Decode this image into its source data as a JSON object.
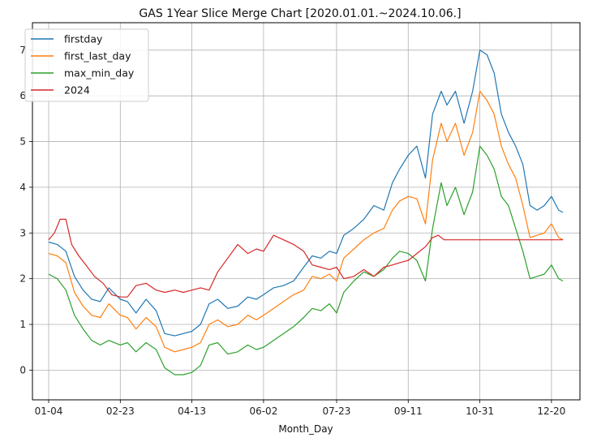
{
  "chart_data": {
    "type": "line",
    "title": "GAS 1Year Slice Merge Chart [2020.01.01.~2024.10.06.]",
    "xlabel": "Month_Day",
    "ylabel": "",
    "x_ticks": [
      "01-04",
      "02-23",
      "04-13",
      "06-02",
      "07-23",
      "09-11",
      "10-31",
      "12-20"
    ],
    "x_range": [
      "01-04",
      "12-28"
    ],
    "y_ticks": [
      0,
      1,
      2,
      3,
      4,
      5,
      6,
      7
    ],
    "ylim": [
      -0.65,
      7.6
    ],
    "grid": true,
    "legend_position": "top-left",
    "series": [
      {
        "name": "firstday",
        "color": "#1f77b4",
        "points": [
          [
            "01-04",
            2.8
          ],
          [
            "01-10",
            2.75
          ],
          [
            "01-16",
            2.6
          ],
          [
            "01-22",
            2.05
          ],
          [
            "01-28",
            1.75
          ],
          [
            "02-03",
            1.55
          ],
          [
            "02-09",
            1.5
          ],
          [
            "02-15",
            1.8
          ],
          [
            "02-23",
            1.55
          ],
          [
            "02-28",
            1.5
          ],
          [
            "03-05",
            1.25
          ],
          [
            "03-12",
            1.55
          ],
          [
            "03-19",
            1.3
          ],
          [
            "03-25",
            0.8
          ],
          [
            "04-01",
            0.75
          ],
          [
            "04-07",
            0.8
          ],
          [
            "04-13",
            0.85
          ],
          [
            "04-19",
            1.0
          ],
          [
            "04-25",
            1.45
          ],
          [
            "05-01",
            1.55
          ],
          [
            "05-08",
            1.35
          ],
          [
            "05-15",
            1.4
          ],
          [
            "05-22",
            1.6
          ],
          [
            "05-28",
            1.55
          ],
          [
            "06-02",
            1.65
          ],
          [
            "06-09",
            1.8
          ],
          [
            "06-16",
            1.85
          ],
          [
            "06-23",
            1.95
          ],
          [
            "06-30",
            2.25
          ],
          [
            "07-06",
            2.5
          ],
          [
            "07-12",
            2.45
          ],
          [
            "07-18",
            2.6
          ],
          [
            "07-23",
            2.55
          ],
          [
            "07-28",
            2.95
          ],
          [
            "08-04",
            3.1
          ],
          [
            "08-11",
            3.3
          ],
          [
            "08-18",
            3.6
          ],
          [
            "08-25",
            3.5
          ],
          [
            "08-31",
            4.1
          ],
          [
            "09-05",
            4.4
          ],
          [
            "09-11",
            4.7
          ],
          [
            "09-17",
            4.9
          ],
          [
            "09-23",
            4.2
          ],
          [
            "09-28",
            5.6
          ],
          [
            "10-04",
            6.1
          ],
          [
            "10-08",
            5.8
          ],
          [
            "10-14",
            6.1
          ],
          [
            "10-20",
            5.4
          ],
          [
            "10-26",
            6.1
          ],
          [
            "10-31",
            7.0
          ],
          [
            "11-05",
            6.9
          ],
          [
            "11-10",
            6.5
          ],
          [
            "11-15",
            5.6
          ],
          [
            "11-20",
            5.2
          ],
          [
            "11-25",
            4.9
          ],
          [
            "11-30",
            4.5
          ],
          [
            "12-05",
            3.6
          ],
          [
            "12-10",
            3.5
          ],
          [
            "12-15",
            3.6
          ],
          [
            "12-20",
            3.8
          ],
          [
            "12-25",
            3.5
          ],
          [
            "12-28",
            3.45
          ]
        ]
      },
      {
        "name": "first_last_day",
        "color": "#ff7f0e",
        "points": [
          [
            "01-04",
            2.55
          ],
          [
            "01-10",
            2.5
          ],
          [
            "01-16",
            2.35
          ],
          [
            "01-22",
            1.7
          ],
          [
            "01-28",
            1.4
          ],
          [
            "02-03",
            1.2
          ],
          [
            "02-09",
            1.15
          ],
          [
            "02-15",
            1.45
          ],
          [
            "02-23",
            1.2
          ],
          [
            "02-28",
            1.15
          ],
          [
            "03-05",
            0.9
          ],
          [
            "03-12",
            1.15
          ],
          [
            "03-19",
            0.95
          ],
          [
            "03-25",
            0.5
          ],
          [
            "04-01",
            0.4
          ],
          [
            "04-07",
            0.45
          ],
          [
            "04-13",
            0.5
          ],
          [
            "04-19",
            0.6
          ],
          [
            "04-25",
            1.0
          ],
          [
            "05-01",
            1.1
          ],
          [
            "05-08",
            0.95
          ],
          [
            "05-15",
            1.0
          ],
          [
            "05-22",
            1.2
          ],
          [
            "05-28",
            1.1
          ],
          [
            "06-02",
            1.2
          ],
          [
            "06-09",
            1.35
          ],
          [
            "06-16",
            1.5
          ],
          [
            "06-23",
            1.65
          ],
          [
            "06-30",
            1.75
          ],
          [
            "07-06",
            2.05
          ],
          [
            "07-12",
            2.0
          ],
          [
            "07-18",
            2.1
          ],
          [
            "07-23",
            1.95
          ],
          [
            "07-28",
            2.45
          ],
          [
            "08-04",
            2.65
          ],
          [
            "08-11",
            2.85
          ],
          [
            "08-18",
            3.0
          ],
          [
            "08-25",
            3.1
          ],
          [
            "08-31",
            3.5
          ],
          [
            "09-05",
            3.7
          ],
          [
            "09-11",
            3.8
          ],
          [
            "09-17",
            3.75
          ],
          [
            "09-23",
            3.2
          ],
          [
            "09-28",
            4.6
          ],
          [
            "10-04",
            5.4
          ],
          [
            "10-08",
            5.0
          ],
          [
            "10-14",
            5.4
          ],
          [
            "10-20",
            4.7
          ],
          [
            "10-26",
            5.2
          ],
          [
            "10-31",
            6.1
          ],
          [
            "11-05",
            5.9
          ],
          [
            "11-10",
            5.6
          ],
          [
            "11-15",
            4.9
          ],
          [
            "11-20",
            4.5
          ],
          [
            "11-25",
            4.2
          ],
          [
            "11-30",
            3.6
          ],
          [
            "12-05",
            2.9
          ],
          [
            "12-10",
            2.95
          ],
          [
            "12-15",
            3.0
          ],
          [
            "12-20",
            3.2
          ],
          [
            "12-25",
            2.9
          ],
          [
            "12-28",
            2.85
          ]
        ]
      },
      {
        "name": "max_min_day",
        "color": "#2ca02c",
        "points": [
          [
            "01-04",
            2.1
          ],
          [
            "01-10",
            2.0
          ],
          [
            "01-16",
            1.75
          ],
          [
            "01-22",
            1.2
          ],
          [
            "01-28",
            0.9
          ],
          [
            "02-03",
            0.65
          ],
          [
            "02-09",
            0.55
          ],
          [
            "02-15",
            0.65
          ],
          [
            "02-23",
            0.55
          ],
          [
            "02-28",
            0.6
          ],
          [
            "03-05",
            0.4
          ],
          [
            "03-12",
            0.6
          ],
          [
            "03-19",
            0.45
          ],
          [
            "03-25",
            0.05
          ],
          [
            "04-01",
            -0.1
          ],
          [
            "04-07",
            -0.1
          ],
          [
            "04-13",
            -0.05
          ],
          [
            "04-19",
            0.1
          ],
          [
            "04-25",
            0.55
          ],
          [
            "05-01",
            0.6
          ],
          [
            "05-08",
            0.35
          ],
          [
            "05-15",
            0.4
          ],
          [
            "05-22",
            0.55
          ],
          [
            "05-28",
            0.45
          ],
          [
            "06-02",
            0.5
          ],
          [
            "06-09",
            0.65
          ],
          [
            "06-16",
            0.8
          ],
          [
            "06-23",
            0.95
          ],
          [
            "06-30",
            1.15
          ],
          [
            "07-06",
            1.35
          ],
          [
            "07-12",
            1.3
          ],
          [
            "07-18",
            1.45
          ],
          [
            "07-23",
            1.25
          ],
          [
            "07-28",
            1.7
          ],
          [
            "08-04",
            1.95
          ],
          [
            "08-11",
            2.15
          ],
          [
            "08-18",
            2.05
          ],
          [
            "08-25",
            2.2
          ],
          [
            "08-31",
            2.45
          ],
          [
            "09-05",
            2.6
          ],
          [
            "09-11",
            2.55
          ],
          [
            "09-17",
            2.4
          ],
          [
            "09-23",
            1.95
          ],
          [
            "09-28",
            3.1
          ],
          [
            "10-04",
            4.1
          ],
          [
            "10-08",
            3.6
          ],
          [
            "10-14",
            4.0
          ],
          [
            "10-20",
            3.4
          ],
          [
            "10-26",
            3.9
          ],
          [
            "10-31",
            4.9
          ],
          [
            "11-05",
            4.7
          ],
          [
            "11-10",
            4.4
          ],
          [
            "11-15",
            3.8
          ],
          [
            "11-20",
            3.6
          ],
          [
            "11-25",
            3.1
          ],
          [
            "11-30",
            2.6
          ],
          [
            "12-05",
            2.0
          ],
          [
            "12-10",
            2.05
          ],
          [
            "12-15",
            2.1
          ],
          [
            "12-20",
            2.3
          ],
          [
            "12-25",
            2.0
          ],
          [
            "12-28",
            1.95
          ]
        ]
      },
      {
        "name": "2024",
        "color": "#d62728",
        "points": [
          [
            "01-04",
            2.85
          ],
          [
            "01-08",
            3.0
          ],
          [
            "01-12",
            3.3
          ],
          [
            "01-16",
            3.3
          ],
          [
            "01-20",
            2.75
          ],
          [
            "01-25",
            2.5
          ],
          [
            "01-30",
            2.3
          ],
          [
            "02-05",
            2.05
          ],
          [
            "02-11",
            1.9
          ],
          [
            "02-17",
            1.65
          ],
          [
            "02-23",
            1.6
          ],
          [
            "02-28",
            1.6
          ],
          [
            "03-05",
            1.85
          ],
          [
            "03-12",
            1.9
          ],
          [
            "03-19",
            1.75
          ],
          [
            "03-25",
            1.7
          ],
          [
            "04-01",
            1.75
          ],
          [
            "04-07",
            1.7
          ],
          [
            "04-13",
            1.75
          ],
          [
            "04-19",
            1.8
          ],
          [
            "04-25",
            1.75
          ],
          [
            "05-01",
            2.15
          ],
          [
            "05-08",
            2.45
          ],
          [
            "05-15",
            2.75
          ],
          [
            "05-22",
            2.55
          ],
          [
            "05-28",
            2.65
          ],
          [
            "06-02",
            2.6
          ],
          [
            "06-09",
            2.95
          ],
          [
            "06-16",
            2.85
          ],
          [
            "06-23",
            2.75
          ],
          [
            "06-30",
            2.6
          ],
          [
            "07-06",
            2.3
          ],
          [
            "07-12",
            2.25
          ],
          [
            "07-18",
            2.2
          ],
          [
            "07-23",
            2.25
          ],
          [
            "07-28",
            2.0
          ],
          [
            "08-04",
            2.05
          ],
          [
            "08-11",
            2.2
          ],
          [
            "08-18",
            2.05
          ],
          [
            "08-25",
            2.25
          ],
          [
            "08-31",
            2.3
          ],
          [
            "09-05",
            2.35
          ],
          [
            "09-11",
            2.4
          ],
          [
            "09-17",
            2.55
          ],
          [
            "09-23",
            2.7
          ],
          [
            "09-28",
            2.9
          ],
          [
            "10-02",
            2.95
          ],
          [
            "10-06",
            2.85
          ],
          [
            "11-15",
            2.85
          ],
          [
            "12-28",
            2.85
          ]
        ]
      }
    ]
  }
}
